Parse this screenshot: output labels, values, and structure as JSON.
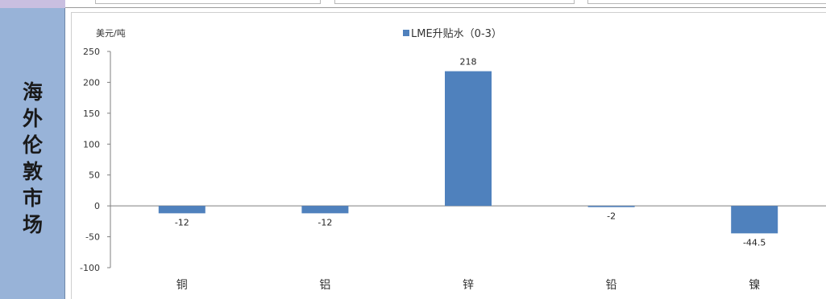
{
  "sidebar": {
    "title_chars": [
      "海",
      "外",
      "伦",
      "敦",
      "市",
      "场"
    ]
  },
  "chart_data": {
    "type": "bar",
    "title": "",
    "ylabel": "美元/吨",
    "xlabel": "",
    "categories": [
      "铜",
      "铝",
      "锌",
      "铅",
      "镍"
    ],
    "series": [
      {
        "name": "LME升贴水（0-3）",
        "values": [
          -12,
          -12,
          218,
          -2,
          -44.5
        ],
        "color": "#4f81bd"
      }
    ],
    "data_labels": [
      "-12",
      "-12",
      "218",
      "-2",
      "-44.5"
    ],
    "ylim": [
      -100,
      250
    ],
    "yticks": [
      250,
      200,
      150,
      100,
      50,
      0,
      -50,
      -100
    ],
    "grid": false,
    "legend_position": "top-center"
  }
}
